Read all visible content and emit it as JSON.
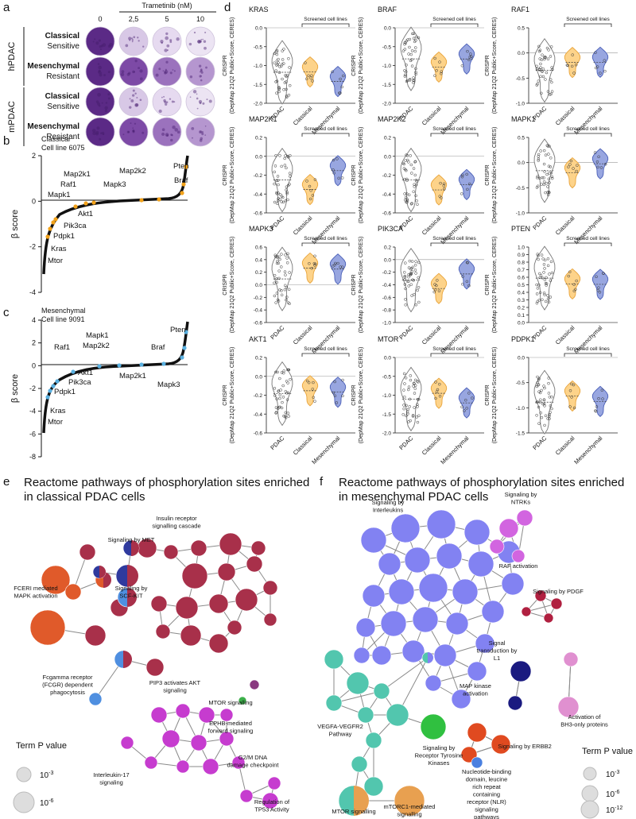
{
  "panel_a": {
    "label": "a",
    "treatment": "Trametinib (nM)",
    "doses": [
      "0",
      "2,5",
      "5",
      "10"
    ],
    "groups": [
      {
        "name": "hPDAC",
        "rows": [
          {
            "subtype": "Classical",
            "response": "Sensitive"
          },
          {
            "subtype": "Mesenchymal",
            "response": "Resistant"
          }
        ]
      },
      {
        "name": "mPDAC",
        "rows": [
          {
            "subtype": "Classical",
            "response": "Sensitive"
          },
          {
            "subtype": "Mesenchymal",
            "response": "Resistant"
          }
        ]
      }
    ]
  },
  "panel_b": {
    "label": "b",
    "subtype": "Classical",
    "cell_line": "Cell line 6075",
    "y_label": "β score",
    "yticks": [
      "2",
      "0",
      "-2",
      "-4"
    ],
    "genes": [
      "Map2k1",
      "Raf1",
      "Mapk1",
      "Map2k2",
      "Mapk3",
      "Pten",
      "Braf",
      "Akt1",
      "Pik3ca",
      "Pdpk1",
      "Kras",
      "Mtor"
    ]
  },
  "panel_c": {
    "label": "c",
    "subtype": "Mesenchymal",
    "cell_line": "Cell line 9091",
    "y_label": "β score",
    "yticks": [
      "4",
      "2",
      "0",
      "-2",
      "-4",
      "-6",
      "-8"
    ],
    "genes": [
      "Pten",
      "Mapk1",
      "Map2k2",
      "Raf1",
      "Braf",
      "Akt1",
      "Pik3ca",
      "Pdpk1",
      "Map2k1",
      "Mapk3",
      "Kras",
      "Mtor"
    ]
  },
  "panel_d": {
    "label": "d",
    "y_label": [
      "CRISPR",
      "(DepMap 21Q2 Public+Score, CERES)"
    ],
    "categories": [
      "PDAC",
      "Classical",
      "Mesenchymal"
    ],
    "bracket": "Screened cell lines",
    "plots": [
      {
        "gene": "KRAS",
        "yticks": [
          "0.0",
          "-0.5",
          "-1.0",
          "-1.5",
          "-2.0"
        ]
      },
      {
        "gene": "BRAF",
        "yticks": [
          "0.0",
          "-0.5",
          "-1.0",
          "-1.5",
          "-2.0"
        ]
      },
      {
        "gene": "RAF1",
        "yticks": [
          "0.5",
          "0.0",
          "-0.5",
          "-1.0"
        ]
      },
      {
        "gene": "MAP2K1",
        "yticks": [
          "0.2",
          "0.0",
          "-0.2",
          "-0.4",
          "-0.6"
        ]
      },
      {
        "gene": "MAP2K2",
        "yticks": [
          "0.2",
          "0.0",
          "-0.2",
          "-0.4",
          "-0.6"
        ]
      },
      {
        "gene": "MAPK1",
        "yticks": [
          "0.5",
          "0.0",
          "-0.5",
          "-1.0"
        ]
      },
      {
        "gene": "MAPK3",
        "yticks": [
          "0.6",
          "0.4",
          "0.2",
          "0.0",
          "-0.2",
          "-0.4",
          "-0.6"
        ]
      },
      {
        "gene": "PIK3CA",
        "yticks": [
          "0.2",
          "0.0",
          "-0.2",
          "-0.4",
          "-0.6",
          "-0.8",
          "-1.0"
        ]
      },
      {
        "gene": "PTEN",
        "yticks": [
          "1.0",
          "0.9",
          "0.8",
          "0.7",
          "0.6",
          "0.5",
          "0.4",
          "0.3",
          "0.2",
          "0.1",
          "0.0"
        ]
      },
      {
        "gene": "AKT1",
        "yticks": [
          "0.2",
          "0.0",
          "-0.2",
          "-0.4",
          "-0.6"
        ]
      },
      {
        "gene": "MTOR",
        "yticks": [
          "0.0",
          "-0.5",
          "-1.0",
          "-1.5",
          "-2.0"
        ]
      },
      {
        "gene": "PDPK1",
        "yticks": [
          "0.0",
          "-0.5",
          "-1.0",
          "-1.5"
        ]
      }
    ]
  },
  "panel_e": {
    "label": "e",
    "title": [
      "Reactome pathways of phosphorylation sites enriched",
      "in classical PDAC cells"
    ],
    "clusters": [
      {
        "lines": [
          "Insulin receptor",
          "signalling cascade"
        ]
      },
      {
        "lines": [
          "Signaling by MET"
        ]
      },
      {
        "lines": [
          "FCERI mediated",
          "MAPK activation"
        ]
      },
      {
        "lines": [
          "Signaling by",
          "SCF-KIT"
        ]
      },
      {
        "lines": [
          "Fcgamma receptor",
          "(FCGR) dependent",
          "phagocytosis"
        ]
      },
      {
        "lines": [
          "PIP3 activates AKT",
          "signaling"
        ]
      },
      {
        "lines": [
          "MTOR signalling"
        ]
      },
      {
        "lines": [
          "EPHB-mediated",
          "forward signaling"
        ]
      },
      {
        "lines": [
          "Interleukin-17",
          "signaling"
        ]
      },
      {
        "lines": [
          "G2/M DNA",
          "damage checkpoint"
        ]
      },
      {
        "lines": [
          "Regulation of",
          "TP53 Activity"
        ]
      }
    ],
    "legend": {
      "title": "Term P value",
      "items": [
        {
          "base": "10",
          "exp": "-3"
        },
        {
          "base": "10",
          "exp": "-6"
        }
      ]
    }
  },
  "panel_f": {
    "label": "f",
    "title": [
      "Reactome pathways of phosphorylation sites enriched",
      "in mesenchymal PDAC cells"
    ],
    "clusters": [
      {
        "lines": [
          "Signaling by",
          "Interleukins"
        ]
      },
      {
        "lines": [
          "Signaling by",
          "NTRKs"
        ]
      },
      {
        "lines": [
          "RAF activation"
        ]
      },
      {
        "lines": [
          "Signaling by PDGF"
        ]
      },
      {
        "lines": [
          "Signal",
          "transduction by",
          "L1"
        ]
      },
      {
        "lines": [
          "MAP kinase",
          "activation"
        ]
      },
      {
        "lines": [
          "Activation of",
          "BH3-only proteins"
        ]
      },
      {
        "lines": [
          "VEGFA-VEGFR2",
          "Pathway"
        ]
      },
      {
        "lines": [
          "Signaling by",
          "Receptor Tyrosine",
          "Kinases"
        ]
      },
      {
        "lines": [
          "Signaling by ERBB2"
        ]
      },
      {
        "lines": [
          "Nucleotide-binding",
          "domain, leucine",
          "rich repeat",
          "containing",
          "receptor (NLR)",
          "signaling",
          "pathways"
        ]
      },
      {
        "lines": [
          "MTOR signalling"
        ]
      },
      {
        "lines": [
          "mTORC1-mediated",
          "signalling"
        ]
      }
    ],
    "legend": {
      "title": "Term P value",
      "items": [
        {
          "base": "10",
          "exp": "-3"
        },
        {
          "base": "10",
          "exp": "-6"
        },
        {
          "base": "10",
          "exp": "-12"
        }
      ]
    }
  }
}
